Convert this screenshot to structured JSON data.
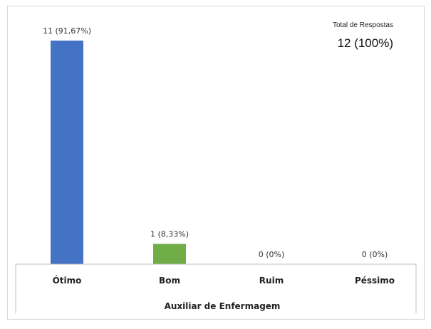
{
  "chart_data": {
    "type": "bar",
    "categories": [
      "Ótimo",
      "Bom",
      "Ruim",
      "Péssimo"
    ],
    "values": [
      11,
      1,
      0,
      0
    ],
    "data_labels": [
      "11 (91,67%)",
      "1 (8,33%)",
      "0 (0%)",
      "0 (0%)"
    ],
    "colors": [
      "#4472c4",
      "#70ad47",
      "#a5a5a5",
      "#a5a5a5"
    ],
    "xlabel": "Auxiliar de Enfermagem",
    "ylabel": "",
    "ylim": [
      0,
      11
    ],
    "grid": false,
    "legend": "none"
  },
  "total": {
    "label": "Total de Respostas",
    "value": "12 (100%)"
  }
}
